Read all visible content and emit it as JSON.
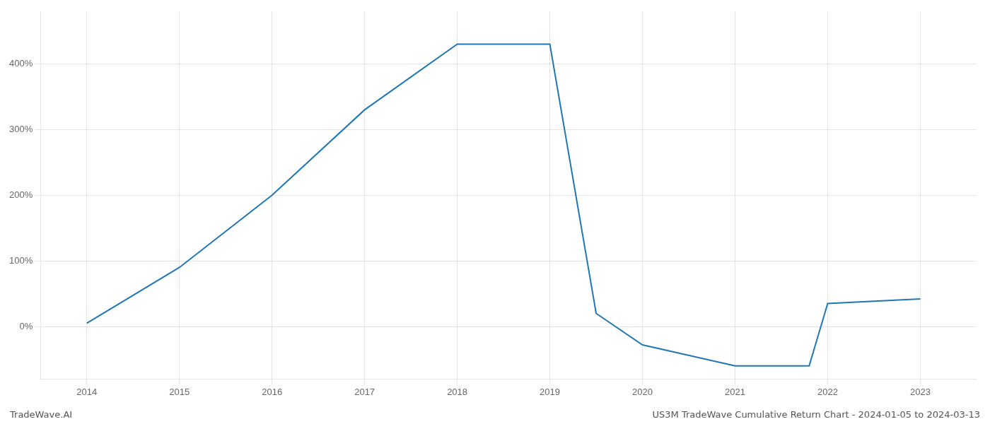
{
  "chart_data": {
    "type": "line",
    "x": [
      2014,
      2015,
      2016,
      2017,
      2018,
      2019,
      2019.5,
      2020,
      2021,
      2021.8,
      2022,
      2023
    ],
    "values": [
      5,
      90,
      200,
      330,
      430,
      430,
      20,
      -28,
      -60,
      -60,
      35,
      42
    ],
    "color": "#1f77b4",
    "xlim": [
      2013.5,
      2023.6
    ],
    "ylim": [
      -80,
      480
    ],
    "xticks": [
      2014,
      2015,
      2016,
      2017,
      2018,
      2019,
      2020,
      2021,
      2022,
      2023
    ],
    "yticks": [
      {
        "value": 0,
        "label": "0%"
      },
      {
        "value": 100,
        "label": "100%"
      },
      {
        "value": 200,
        "label": "200%"
      },
      {
        "value": 300,
        "label": "300%"
      },
      {
        "value": 400,
        "label": "400%"
      }
    ],
    "grid": true,
    "annotations": [
      "TradeWave.AI",
      "US3M TradeWave Cumulative Return Chart - 2024-01-05 to 2024-03-13"
    ]
  }
}
